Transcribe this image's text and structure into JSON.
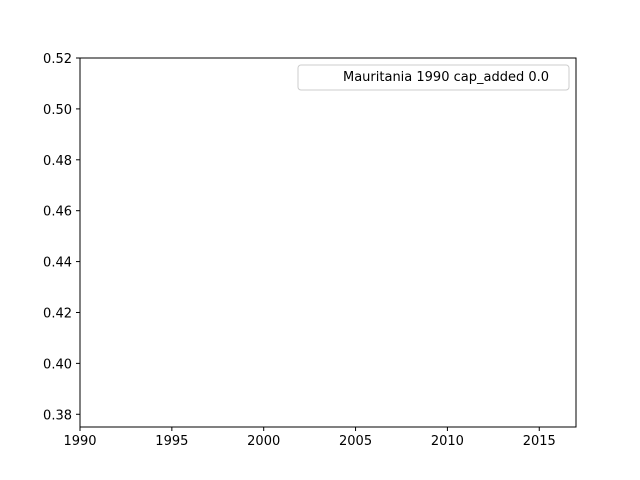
{
  "chart_data": {
    "type": "line",
    "title": "",
    "xlabel": "",
    "ylabel": "",
    "xlim": [
      1990,
      2017
    ],
    "ylim": [
      0.375,
      0.52
    ],
    "x_ticks": [
      1990,
      1995,
      2000,
      2005,
      2010,
      2015
    ],
    "x_tick_labels": [
      "1990",
      "1995",
      "2000",
      "2005",
      "2010",
      "2015"
    ],
    "y_ticks": [
      0.38,
      0.4,
      0.42,
      0.44,
      0.46,
      0.48,
      0.5,
      0.52
    ],
    "y_tick_labels": [
      "0.38",
      "0.40",
      "0.42",
      "0.44",
      "0.46",
      "0.48",
      "0.50",
      "0.52"
    ],
    "grid": false,
    "legend": {
      "position": "upper-right",
      "entries": [
        "Mauritania 1990 cap_added 0.0"
      ]
    },
    "series": [
      {
        "name": "Mauritania 1990 cap_added 0.0",
        "x": [],
        "y": [],
        "color": "#ffffff"
      }
    ]
  }
}
